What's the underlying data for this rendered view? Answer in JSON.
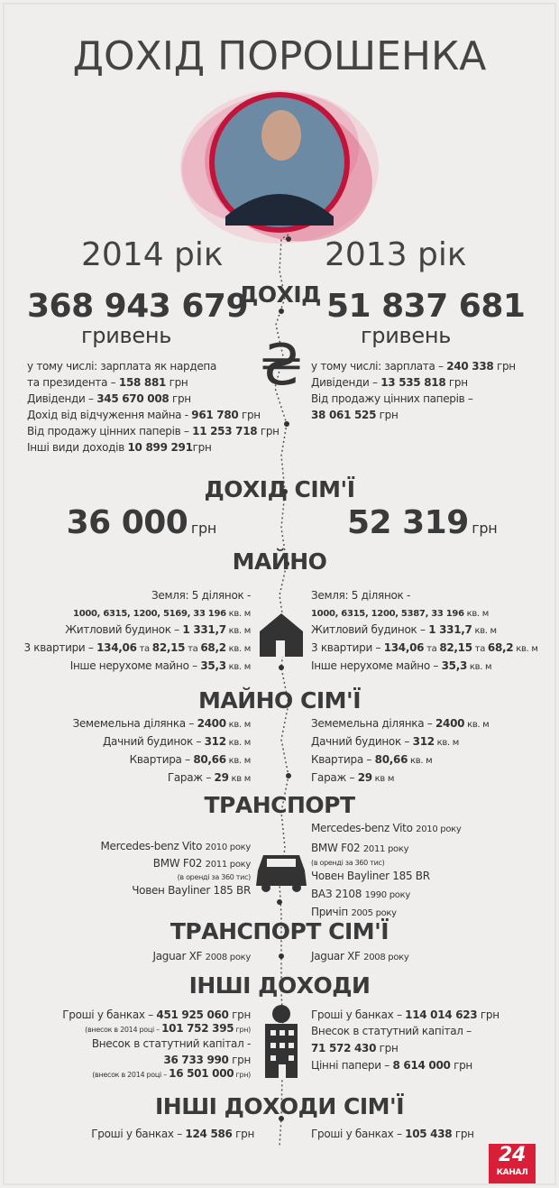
{
  "header": {
    "title": "ДОХІД ПОРОШЕНКА",
    "year_left": "2014 рік",
    "year_right": "2013 рік"
  },
  "currency_sign": "₴",
  "sections": [
    {
      "heading": "ДОХІД",
      "left": {
        "amount": "368 943 679",
        "unit": "гривень",
        "lines": [
          [
            "у тому числі: зарплата як нардепа"
          ],
          [
            "та президента – ",
            {
              "bold": "158 881"
            },
            " грн"
          ],
          [
            "Дивіденди – ",
            {
              "bold": "345 670 008"
            },
            " грн"
          ],
          [
            "Дохід від відчуження майна  - ",
            {
              "bold": "961 780"
            },
            " грн"
          ],
          [
            "Від продажу цінних паперів – ",
            {
              "bold": "11 253 718"
            },
            " грн"
          ],
          [
            "Інші види доходів ",
            {
              "bold": "10 899 291"
            },
            "грн"
          ]
        ]
      },
      "right": {
        "amount": "51 837 681",
        "unit": "гривень",
        "lines": [
          [
            "у тому числі: зарплата  – ",
            {
              "bold": "240 338"
            },
            " грн"
          ],
          [
            "Дивіденди – ",
            {
              "bold": "13 535 818"
            },
            " грн"
          ],
          [
            "Від продажу цінних паперів –"
          ],
          [
            {
              "bold": "38 061 525"
            },
            " грн"
          ]
        ]
      }
    },
    {
      "heading": "ДОХІД СІМ'Ї",
      "left": {
        "amount": "36 000",
        "unit": "грн",
        "lines": []
      },
      "right": {
        "amount": "52 319",
        "unit": "грн",
        "lines": []
      }
    },
    {
      "heading": "МАЙНО",
      "left": {
        "lines": [
          [
            "Земля: 5 ділянок -"
          ],
          [
            {
              "small_bold": "1000, 6315, 1200, 5169, 33 196"
            },
            {
              "small": " кв. м"
            }
          ],
          [
            "Житловий будинок – ",
            {
              "bold": "1 331,7"
            },
            {
              "small": " кв. м"
            }
          ],
          [
            "3 квартири  – ",
            {
              "bold": "134,06"
            },
            {
              "small": " та "
            },
            {
              "bold": "82,15"
            },
            {
              "small": " та "
            },
            {
              "bold": "68,2"
            },
            {
              "small": " кв. м"
            }
          ],
          [
            "Інше нерухоме майно – ",
            {
              "bold": "35,3"
            },
            {
              "small": " кв. м"
            }
          ]
        ]
      },
      "right": {
        "lines": [
          [
            "Земля: 5 ділянок -"
          ],
          [
            {
              "small_bold": "1000, 6315, 1200, 5387, 33 196"
            },
            {
              "small": " кв. м"
            }
          ],
          [
            "Житловий будинок – ",
            {
              "bold": "1 331,7"
            },
            {
              "small": " кв. м"
            }
          ],
          [
            "3 квартири  – ",
            {
              "bold": "134,06"
            },
            {
              "small": " та "
            },
            {
              "bold": "82,15"
            },
            {
              "small": " та "
            },
            {
              "bold": "68,2"
            },
            {
              "small": " кв. м"
            }
          ],
          [
            "Інше нерухоме майно – ",
            {
              "bold": "35,3"
            },
            {
              "small": " кв. м"
            }
          ]
        ]
      }
    },
    {
      "heading": "МАЙНО СІМ'Ї",
      "left": {
        "lines": [
          [
            "Земемельна ділянка – ",
            {
              "bold": "2400"
            },
            {
              "small": " кв. м"
            }
          ],
          [
            "Дачний будинок – ",
            {
              "bold": "312"
            },
            {
              "small": " кв. м"
            }
          ],
          [
            "Квартира – ",
            {
              "bold": "80,66"
            },
            {
              "small": " кв. м"
            }
          ],
          [
            "Гараж – ",
            {
              "bold": "29"
            },
            {
              "small": " кв м"
            }
          ]
        ]
      },
      "right": {
        "lines": [
          [
            "Земемельна ділянка – ",
            {
              "bold": "2400"
            },
            {
              "small": " кв. м"
            }
          ],
          [
            "Дачний будинок – ",
            {
              "bold": "312"
            },
            {
              "small": " кв. м"
            }
          ],
          [
            "Квартира – ",
            {
              "bold": "80,66"
            },
            {
              "small": " кв. м"
            }
          ],
          [
            "Гараж – ",
            {
              "bold": "29"
            },
            {
              "small": " кв м"
            }
          ]
        ]
      }
    },
    {
      "heading": "ТРАНСПОРТ",
      "left": {
        "lines": [
          [
            "Mercedes-benz Vito ",
            {
              "small": "2010 року"
            }
          ],
          [
            "BMW F02 ",
            {
              "small": "2011 року"
            }
          ],
          [
            {
              "tiny": "(в оренді за 360 тис)"
            }
          ],
          [
            "Човен Bayliner 185 BR"
          ]
        ]
      },
      "right": {
        "lines": [
          [
            "Mercedes-benz Vito ",
            {
              "small": "2010 року"
            }
          ],
          [
            "BMW F02 ",
            {
              "small": "2011 року"
            }
          ],
          [
            {
              "tiny": "(в оренді за 360 тис)"
            }
          ],
          [
            "Човен Bayliner 185 BR"
          ],
          [
            "ВАЗ 2108 ",
            {
              "small": "1990 року"
            }
          ],
          [
            "Причіп ",
            {
              "small": "2005 року"
            }
          ]
        ]
      }
    },
    {
      "heading": "ТРАНСПОРТ СІМ'Ї",
      "left": {
        "lines": [
          [
            "Jaguar XF   ",
            {
              "small": "2008 року"
            }
          ]
        ]
      },
      "right": {
        "lines": [
          [
            "Jaguar XF   ",
            {
              "small": "2008 року"
            }
          ]
        ]
      }
    },
    {
      "heading": "ІНШІ ДОХОДИ",
      "left": {
        "lines": [
          [
            "Гроші у банках – ",
            {
              "bold": "451 925 060"
            },
            " грн"
          ],
          [
            {
              "tiny": "(внесок в 2014 році – "
            },
            {
              "bold": "101 752 395"
            },
            {
              "tiny": " грн)"
            }
          ],
          [
            "Внесок в статутний капітал -"
          ],
          [
            {
              "bold": "36 733 990"
            },
            " грн"
          ],
          [
            {
              "tiny": "(внесок в 2014 році – "
            },
            {
              "bold": "16 501 000"
            },
            {
              "tiny": " грн)"
            }
          ]
        ]
      },
      "right": {
        "lines": [
          [
            "Гроші у банках – ",
            {
              "bold": "114 014 623"
            },
            " грн"
          ],
          [
            "Внесок в статутний капітал –"
          ],
          [
            {
              "bold": "71 572 430"
            },
            " грн"
          ],
          [
            "Цінні папери – ",
            {
              "bold": "8 614 000"
            },
            " грн"
          ]
        ]
      }
    },
    {
      "heading": "ІНШІ ДОХОДИ СІМ'Ї",
      "left": {
        "lines": [
          [
            "Гроші у банках – ",
            {
              "bold": "124 586"
            },
            " грн"
          ]
        ]
      },
      "right": {
        "lines": [
          [
            "Гроші у банках – ",
            {
              "bold": "105 438"
            },
            " грн"
          ]
        ]
      }
    }
  ],
  "logo": {
    "number": "24",
    "caption": "КАНАЛ"
  }
}
